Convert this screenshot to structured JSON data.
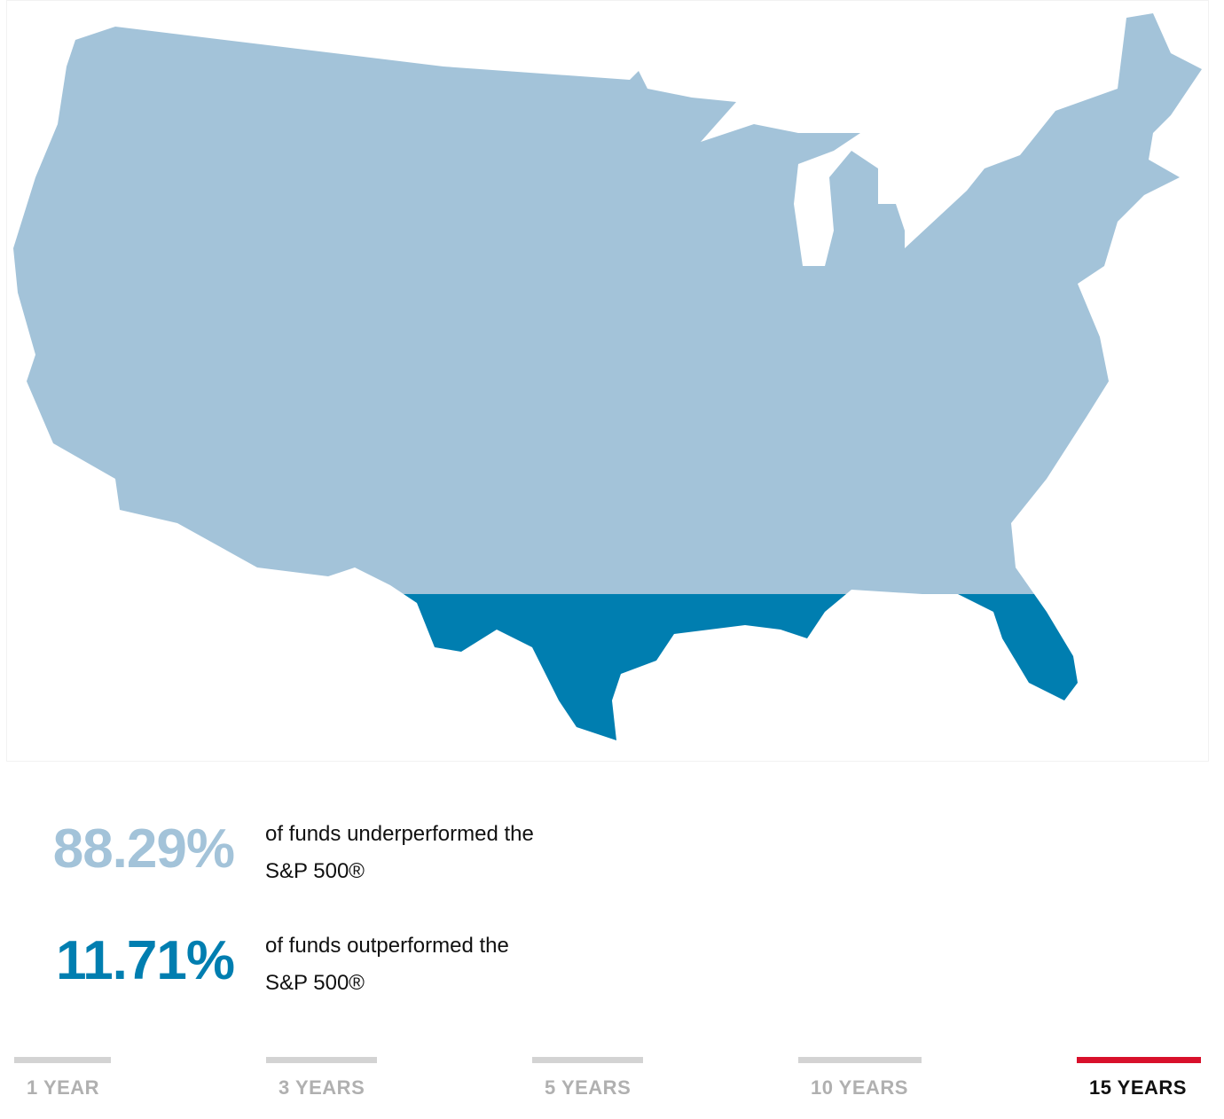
{
  "stats": [
    {
      "value": 88.29,
      "value_label": "88.29%",
      "lines": [
        "of funds underperformed the",
        "S&P 500®"
      ],
      "color": "#a3c3d9"
    },
    {
      "value": 11.71,
      "value_label": "11.71%",
      "lines": [
        "of funds outperformed the",
        "S&P 500®"
      ],
      "color": "#007eb0"
    }
  ],
  "tabs": [
    "1 YEAR",
    "3 YEARS",
    "5 YEARS",
    "10 YEARS",
    "15 YEARS"
  ],
  "active_tab": 4
}
